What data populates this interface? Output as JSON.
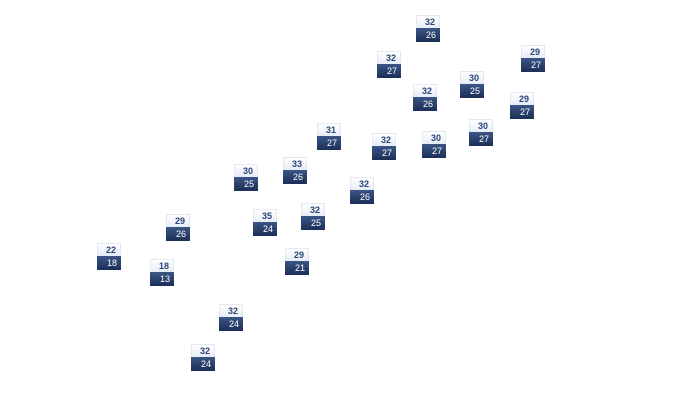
{
  "colors": {
    "high_bg": "#ffffff",
    "high_text": "#2b4577",
    "low_bg": "#1f3560",
    "low_text": "#ffffff"
  },
  "markers": [
    {
      "high": "32",
      "low": "26"
    },
    {
      "high": "32",
      "low": "27"
    },
    {
      "high": "29",
      "low": "27"
    },
    {
      "high": "30",
      "low": "25"
    },
    {
      "high": "32",
      "low": "26"
    },
    {
      "high": "29",
      "low": "27"
    },
    {
      "high": "31",
      "low": "27"
    },
    {
      "high": "32",
      "low": "27"
    },
    {
      "high": "30",
      "low": "27"
    },
    {
      "high": "30",
      "low": "27"
    },
    {
      "high": "30",
      "low": "25"
    },
    {
      "high": "33",
      "low": "26"
    },
    {
      "high": "32",
      "low": "26"
    },
    {
      "high": "29",
      "low": "26"
    },
    {
      "high": "35",
      "low": "24"
    },
    {
      "high": "32",
      "low": "25"
    },
    {
      "high": "22",
      "low": "18"
    },
    {
      "high": "18",
      "low": "13"
    },
    {
      "high": "29",
      "low": "21"
    },
    {
      "high": "32",
      "low": "24"
    },
    {
      "high": "32",
      "low": "24"
    }
  ]
}
